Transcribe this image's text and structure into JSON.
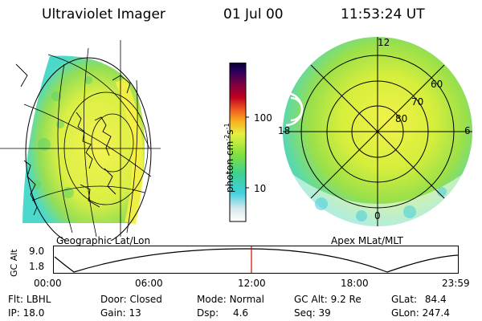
{
  "header": {
    "title": "Ultraviolet Imager",
    "date": "01 Jul 00",
    "time": "11:53:24 UT"
  },
  "panels": {
    "left_caption": "Geographic Lat/Lon",
    "right_caption": "Apex MLat/MLT",
    "polar_labels": {
      "mlt_top": "12",
      "mlt_left": "18",
      "mlt_right": "6",
      "mlt_bottom": "0",
      "lat_60": "60",
      "lat_70": "70",
      "lat_80": "80"
    }
  },
  "colorbar": {
    "unit_label": "photon cm",
    "unit_exp1": "-2",
    "unit_s": "s",
    "unit_exp2": "-1",
    "tick_100": "100",
    "tick_10": "10"
  },
  "altitude_plot": {
    "ylabel": "GC Alt",
    "ytick_high": "9.0",
    "ytick_low": "1.8",
    "xticks": [
      "00:00",
      "06:00",
      "12:00",
      "18:00",
      "23:59"
    ],
    "marker_color": "#e00000"
  },
  "info": {
    "flt_label": "Flt:",
    "flt_value": "LBHL",
    "ip_label": "IP:",
    "ip_value": "18.0",
    "door_label": "Door:",
    "door_value": "Closed",
    "gain_label": "Gain:",
    "gain_value": "13",
    "mode_label": "Mode:",
    "mode_value": "Normal",
    "dsp_label": "Dsp:",
    "dsp_value": "4.6",
    "gcalt_label": "GC Alt:",
    "gcalt_value": "9.2 Re",
    "seq_label": "Seq:",
    "seq_value": "39",
    "glat_label": "GLat:",
    "glat_value": "84.4",
    "glon_label": "GLon:",
    "glon_value": "247.4"
  }
}
